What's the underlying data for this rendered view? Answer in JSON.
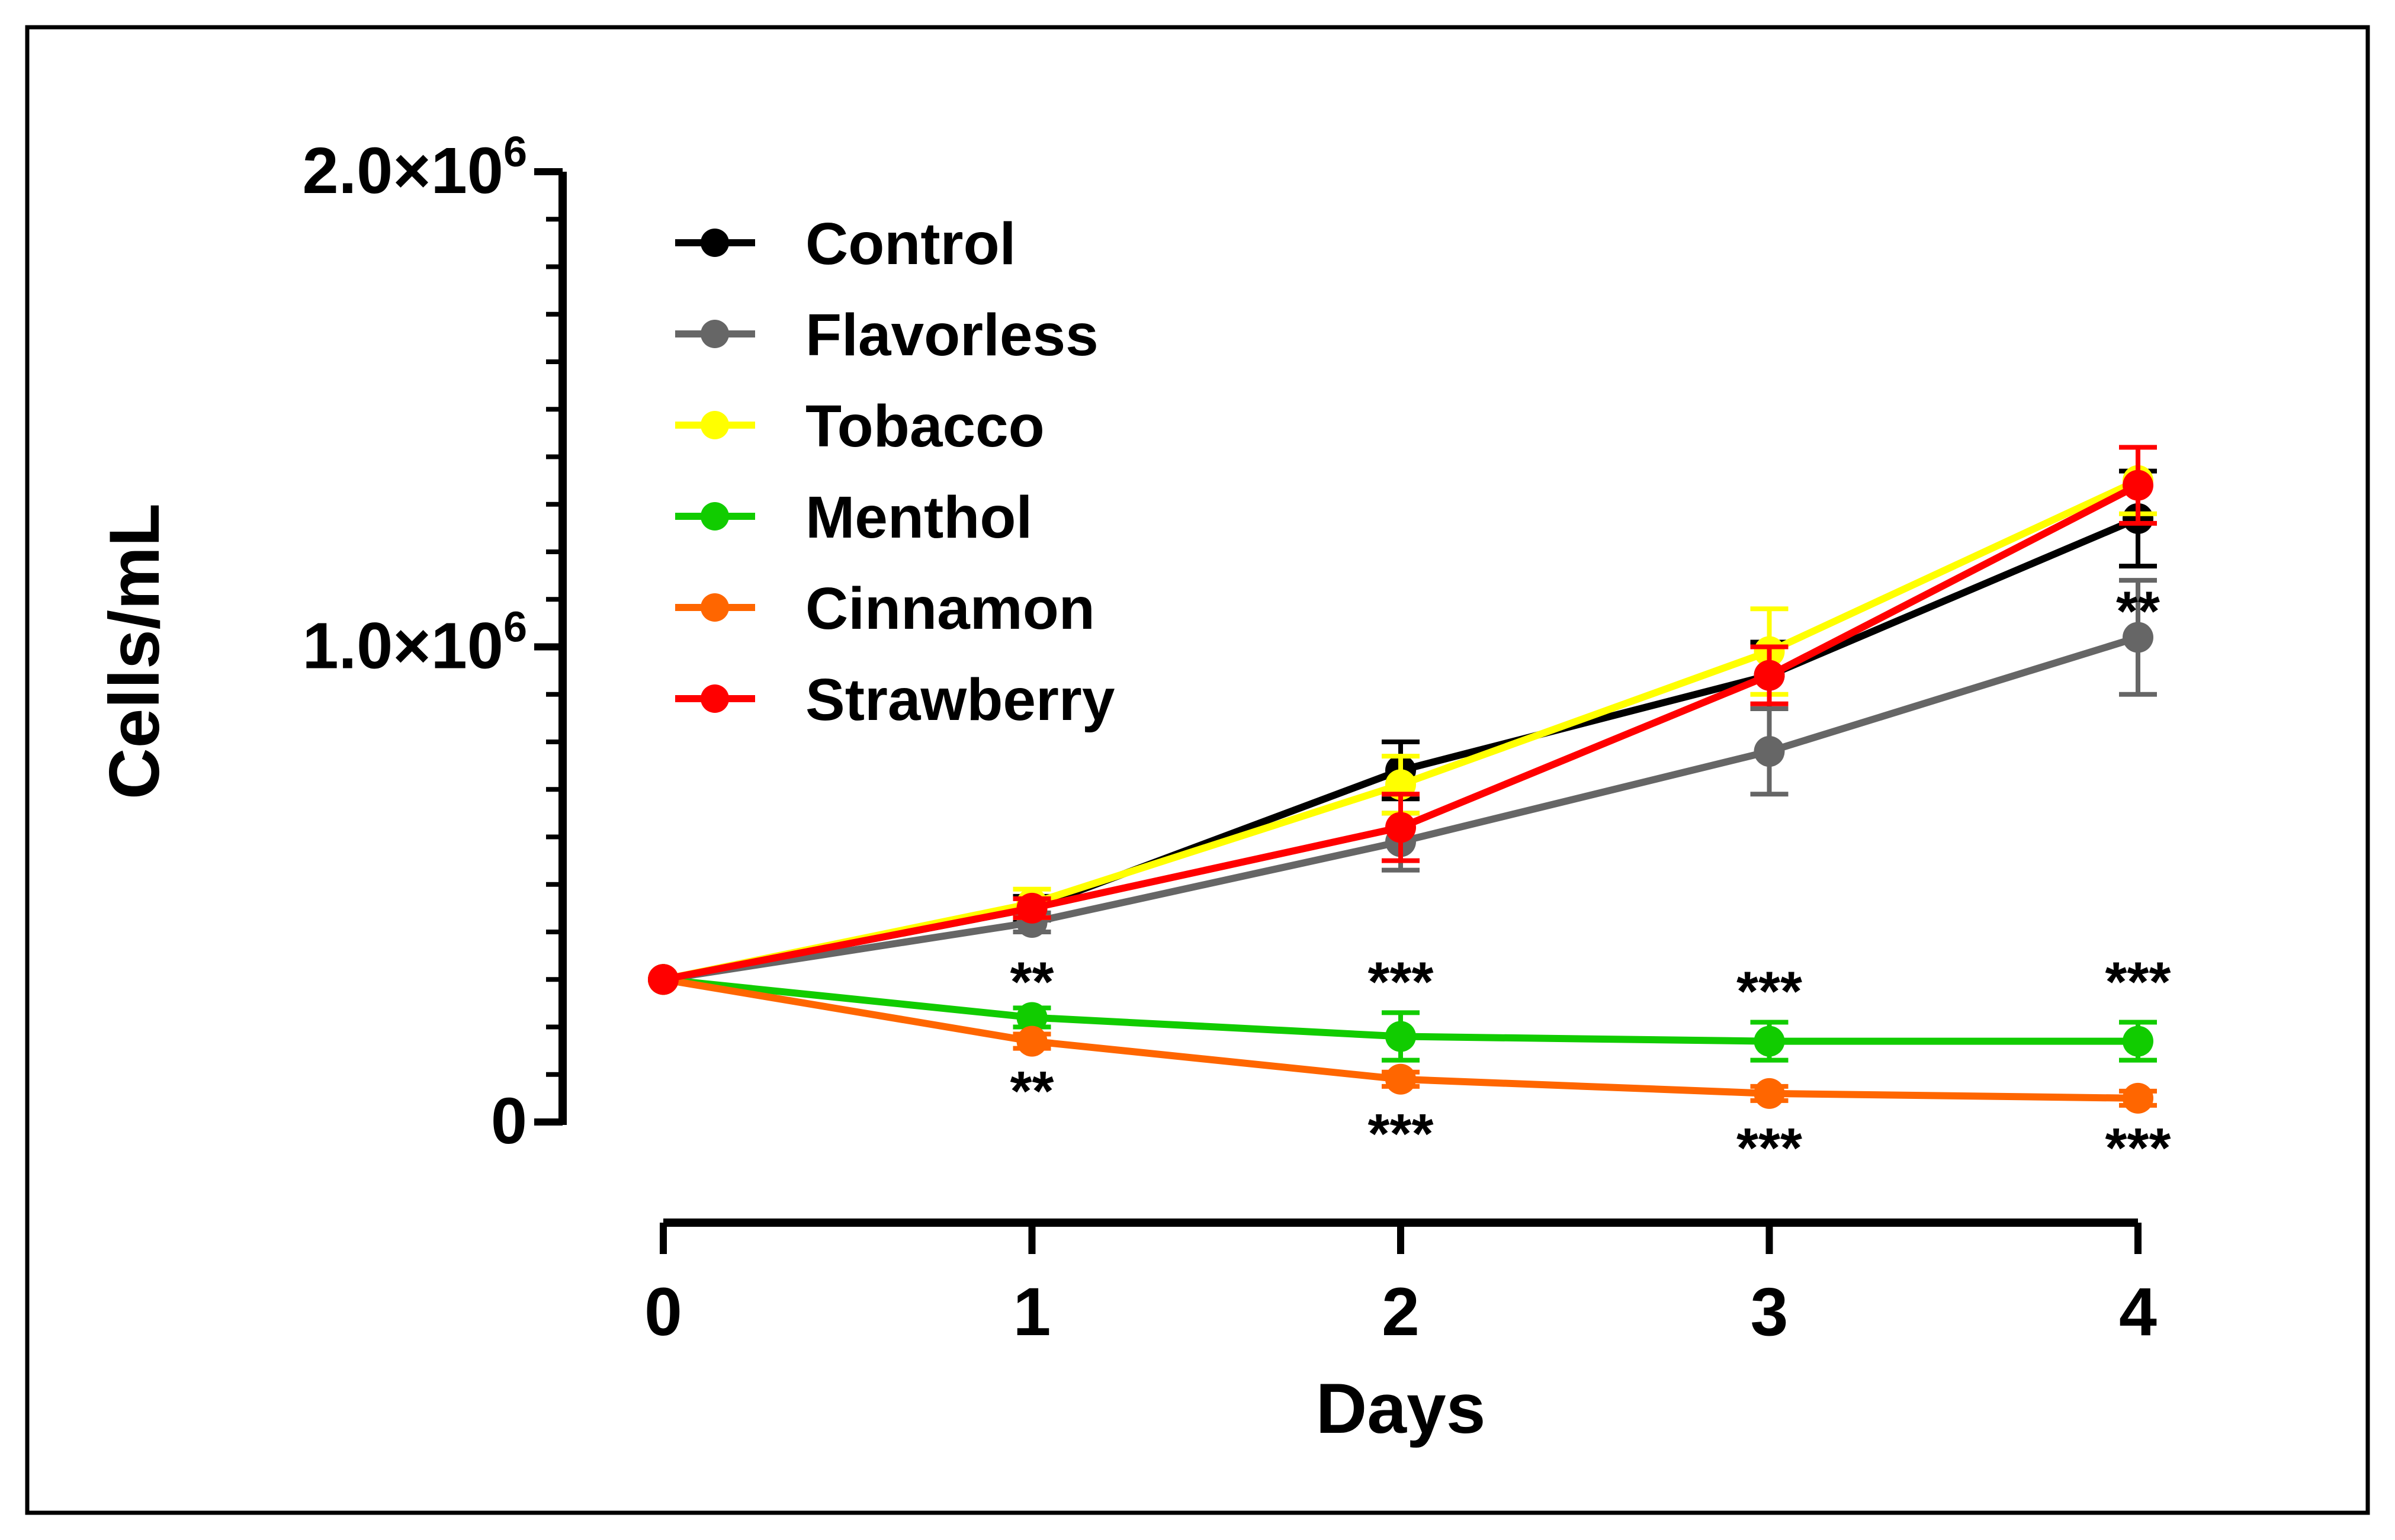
{
  "chart_data": {
    "type": "line",
    "title": "",
    "xlabel": "Days",
    "ylabel": "Cells/mL",
    "x": [
      0,
      1,
      2,
      3,
      4
    ],
    "xlim": [
      0,
      4
    ],
    "ylim": [
      0,
      2000000
    ],
    "x_ticks": [
      "0",
      "1",
      "2",
      "3",
      "4"
    ],
    "y_ticks": [
      {
        "value": 0,
        "label": "0"
      },
      {
        "value": 1000000,
        "label": "1.0×10",
        "exp": "6"
      },
      {
        "value": 2000000,
        "label": "2.0×10",
        "exp": "6"
      }
    ],
    "legend_position": "top-left",
    "grid": false,
    "series": [
      {
        "name": "Control",
        "color": "#000000",
        "values": [
          300000,
          450000,
          740000,
          940000,
          1270000
        ],
        "errors": [
          0,
          25000,
          60000,
          70000,
          100000
        ]
      },
      {
        "name": "Flavorless",
        "color": "#666666",
        "values": [
          300000,
          420000,
          590000,
          780000,
          1020000
        ],
        "errors": [
          0,
          20000,
          60000,
          90000,
          120000
        ]
      },
      {
        "name": "Tobacco",
        "color": "#ffff00",
        "values": [
          300000,
          460000,
          710000,
          990000,
          1350000
        ],
        "errors": [
          0,
          30000,
          60000,
          90000,
          70000
        ]
      },
      {
        "name": "Menthol",
        "color": "#11cc00",
        "values": [
          300000,
          220000,
          180000,
          170000,
          170000
        ],
        "errors": [
          0,
          20000,
          50000,
          40000,
          40000
        ]
      },
      {
        "name": "Cinnamon",
        "color": "#ff6600",
        "values": [
          300000,
          170000,
          90000,
          60000,
          50000
        ],
        "errors": [
          0,
          15000,
          15000,
          15000,
          15000
        ]
      },
      {
        "name": "Strawberry",
        "color": "#ff0000",
        "values": [
          300000,
          450000,
          620000,
          940000,
          1340000
        ],
        "errors": [
          0,
          20000,
          70000,
          60000,
          80000
        ]
      }
    ],
    "annotations": [
      {
        "text": "**",
        "x": 4,
        "y": 1060000,
        "note": "Flavorless"
      },
      {
        "text": "**",
        "x": 1,
        "y": 280000
      },
      {
        "text": "***",
        "x": 2,
        "y": 280000
      },
      {
        "text": "***",
        "x": 3,
        "y": 260000
      },
      {
        "text": "***",
        "x": 4,
        "y": 280000
      },
      {
        "text": "**",
        "x": 1,
        "y": 50000
      },
      {
        "text": "***",
        "x": 2,
        "y": -40000
      },
      {
        "text": "***",
        "x": 3,
        "y": -70000
      },
      {
        "text": "***",
        "x": 4,
        "y": -70000
      }
    ]
  }
}
